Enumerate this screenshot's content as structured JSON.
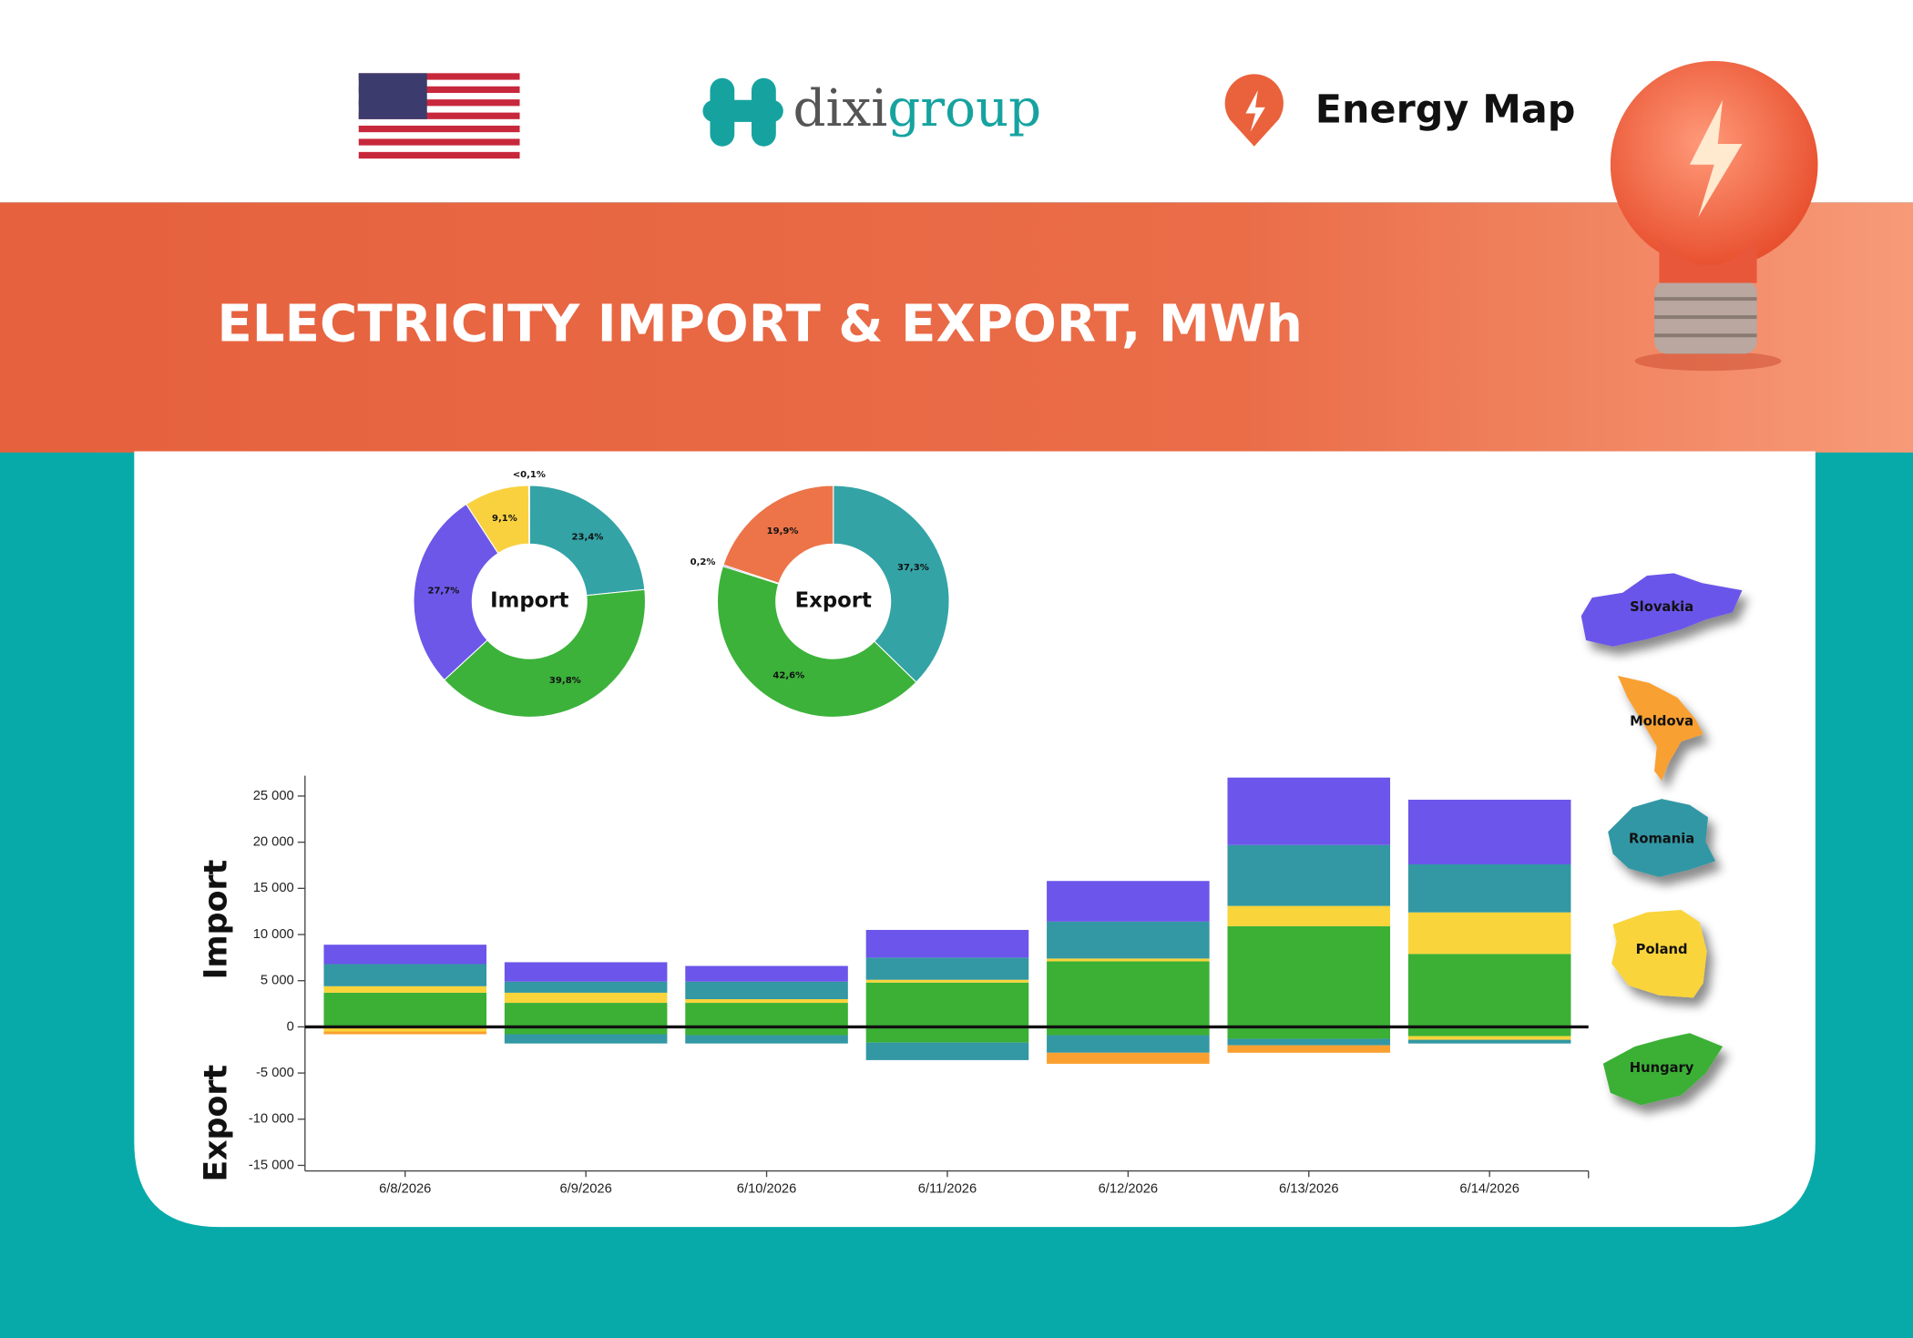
{
  "header": {
    "brand": [
      "dixi",
      "group"
    ],
    "product": "Energy Map",
    "title": "ELECTRICITY IMPORT & EXPORT, MWh"
  },
  "chart_data": [
    {
      "type": "donut",
      "center_label": "Import",
      "values": [
        23.4,
        39.8,
        27.7,
        9.1,
        0.1
      ],
      "value_labels": [
        "23,4%",
        "39,8%",
        "27,7%",
        "9,1%",
        "<0,1%"
      ],
      "colors": [
        "#33a3a6",
        "#3cb23a",
        "#6c57e8",
        "#f9d13e",
        "#ec7448"
      ]
    },
    {
      "type": "donut",
      "center_label": "Export",
      "values": [
        37.3,
        42.6,
        0.2,
        19.9
      ],
      "value_labels": [
        "37,3%",
        "42,6%",
        "0,2%",
        "19,9%"
      ],
      "colors": [
        "#33a3a6",
        "#3cb23a",
        "#6c57e8",
        "#ec7448"
      ]
    },
    {
      "type": "stacked_bar",
      "ylabel_top": "Import",
      "ylabel_bottom": "Export",
      "categories": [
        "6/8/2026",
        "6/9/2026",
        "6/10/2026",
        "6/11/2026",
        "6/12/2026",
        "6/13/2026",
        "6/14/2026"
      ],
      "series": [
        {
          "name": "Slovakia",
          "color": "#6b55ea",
          "values": [
            2100,
            2100,
            1700,
            3000,
            4400,
            7300,
            7000
          ],
          "export_values": [
            0,
            0,
            0,
            0,
            0,
            0,
            0
          ]
        },
        {
          "name": "Moldova",
          "color": "#f9a030",
          "values": [
            0,
            0,
            0,
            0,
            0,
            0,
            0
          ],
          "export_values": [
            -300,
            0,
            0,
            0,
            -1200,
            -800,
            0
          ]
        },
        {
          "name": "Romania",
          "color": "#3397a4",
          "values": [
            2400,
            1200,
            1900,
            2400,
            4000,
            6600,
            5200
          ],
          "export_values": [
            0,
            -1000,
            -900,
            -1900,
            -1900,
            -700,
            -400
          ]
        },
        {
          "name": "Poland",
          "color": "#f9d43a",
          "values": [
            700,
            1100,
            400,
            300,
            300,
            2200,
            4500
          ],
          "export_values": [
            -500,
            0,
            0,
            0,
            0,
            0,
            -400
          ]
        },
        {
          "name": "Hungary",
          "color": "#3bb035",
          "values": [
            3700,
            2600,
            2600,
            4800,
            7100,
            10900,
            7900
          ],
          "export_values": [
            0,
            -800,
            -900,
            -1700,
            -900,
            -1300,
            -1000
          ]
        }
      ],
      "ylim": [
        -15600,
        27200
      ],
      "yticks": [
        {
          "value": -15000,
          "label": "-15 000"
        },
        {
          "value": -10000,
          "label": "-10 000"
        },
        {
          "value": -5000,
          "label": "-5 000"
        },
        0,
        {
          "value": 5000,
          "label": "5 000"
        },
        {
          "value": 10000,
          "label": "10 000"
        },
        {
          "value": 15000,
          "label": "15 000"
        },
        {
          "value": 20000,
          "label": "20 000"
        },
        {
          "value": 25000,
          "label": "25 000"
        }
      ]
    }
  ]
}
